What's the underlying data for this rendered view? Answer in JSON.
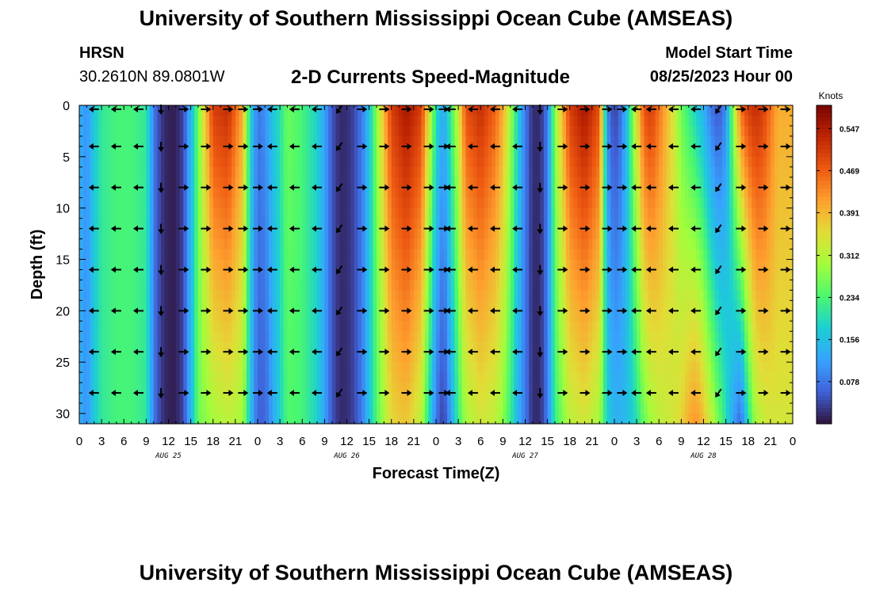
{
  "title": "University of Southern Mississippi Ocean Cube (AMSEAS)",
  "footer_title": "University of Southern Mississippi Ocean Cube (AMSEAS)",
  "station": {
    "name": "HRSN",
    "coords": "30.2610N  89.0801W"
  },
  "subtitle": "2-D Currents Speed-Magnitude",
  "model": {
    "label": "Model Start Time",
    "value": "08/25/2023 Hour 00"
  },
  "chart_data": {
    "type": "heatmap",
    "title": "2-D Currents Speed-Magnitude",
    "xlabel": "Forecast Time(Z)",
    "ylabel": "Depth (ft)",
    "x_range_hours": [
      0,
      96
    ],
    "ylim": [
      31,
      0
    ],
    "x_ticks": [
      "0",
      "3",
      "6",
      "9",
      "12",
      "15",
      "18",
      "21",
      "0",
      "3",
      "6",
      "9",
      "12",
      "15",
      "18",
      "21",
      "0",
      "3",
      "6",
      "9",
      "12",
      "15",
      "18",
      "21",
      "0",
      "3",
      "6",
      "9",
      "12",
      "15",
      "18",
      "21",
      "0"
    ],
    "day_labels": [
      {
        "text": "AUG 25",
        "hour": 12
      },
      {
        "text": "AUG 26",
        "hour": 36
      },
      {
        "text": "AUG 27",
        "hour": 60
      },
      {
        "text": "AUG 28",
        "hour": 84
      }
    ],
    "y_ticks": [
      0,
      5,
      10,
      15,
      20,
      25,
      30
    ],
    "colorbar": {
      "unit": "Knots",
      "range": [
        0,
        0.59
      ],
      "ticks": [
        "0.547",
        "0.469",
        "0.391",
        "0.312",
        "0.234",
        "0.156",
        "0.078"
      ],
      "tick_values": [
        0.547,
        0.469,
        0.391,
        0.312,
        0.234,
        0.156,
        0.078
      ]
    },
    "speed_profile": {
      "hours": [
        0,
        1,
        2,
        3,
        5,
        7,
        9,
        9.5,
        10,
        11,
        12,
        13,
        14,
        15,
        16,
        18,
        20,
        22,
        23,
        24,
        25,
        26,
        27,
        28,
        30,
        32,
        33,
        34,
        35,
        36,
        37,
        38,
        39,
        40,
        42,
        44,
        46,
        47,
        48,
        49,
        50,
        51,
        52,
        54,
        56,
        57,
        58,
        59,
        60,
        61,
        62,
        63,
        64,
        66,
        68,
        70,
        71,
        72,
        73,
        74,
        75,
        76,
        77,
        78,
        80,
        81,
        82,
        83,
        84,
        85,
        86,
        87,
        88,
        89,
        90,
        91,
        92,
        93,
        94,
        96
      ],
      "speed_knots_top": [
        0.14,
        0.1,
        0.17,
        0.21,
        0.23,
        0.23,
        0.21,
        0.15,
        0.08,
        0.03,
        0.01,
        0.01,
        0.04,
        0.14,
        0.26,
        0.5,
        0.52,
        0.4,
        0.18,
        0.08,
        0.1,
        0.16,
        0.2,
        0.26,
        0.23,
        0.18,
        0.12,
        0.05,
        0.02,
        0.02,
        0.04,
        0.08,
        0.16,
        0.28,
        0.5,
        0.55,
        0.5,
        0.35,
        0.2,
        0.12,
        0.22,
        0.33,
        0.48,
        0.52,
        0.46,
        0.4,
        0.3,
        0.18,
        0.08,
        0.02,
        0.02,
        0.08,
        0.28,
        0.5,
        0.55,
        0.48,
        0.1,
        0.03,
        0.08,
        0.2,
        0.35,
        0.48,
        0.5,
        0.45,
        0.34,
        0.26,
        0.22,
        0.18,
        0.14,
        0.08,
        0.05,
        0.1,
        0.28,
        0.45,
        0.5,
        0.52,
        0.5,
        0.45,
        0.4,
        0.4
      ],
      "speed_knots_bottom": [
        0.14,
        0.1,
        0.17,
        0.21,
        0.23,
        0.23,
        0.21,
        0.15,
        0.08,
        0.03,
        0.01,
        0.01,
        0.04,
        0.14,
        0.26,
        0.3,
        0.32,
        0.3,
        0.16,
        0.06,
        0.06,
        0.12,
        0.18,
        0.24,
        0.23,
        0.18,
        0.12,
        0.05,
        0.02,
        0.02,
        0.04,
        0.08,
        0.16,
        0.24,
        0.36,
        0.38,
        0.32,
        0.2,
        0.08,
        0.03,
        0.12,
        0.22,
        0.3,
        0.34,
        0.32,
        0.28,
        0.22,
        0.14,
        0.08,
        0.02,
        0.02,
        0.08,
        0.22,
        0.32,
        0.34,
        0.3,
        0.18,
        0.14,
        0.14,
        0.16,
        0.2,
        0.26,
        0.3,
        0.32,
        0.34,
        0.36,
        0.4,
        0.42,
        0.38,
        0.32,
        0.26,
        0.2,
        0.12,
        0.07,
        0.2,
        0.3,
        0.33,
        0.34,
        0.34,
        0.34
      ]
    },
    "vector_depths_ft": [
      0,
      4,
      8,
      12,
      16,
      20,
      24,
      28
    ],
    "vectors": [
      {
        "hour": 2,
        "dir": "W",
        "rows": "all"
      },
      {
        "hour": 5,
        "dir": "W",
        "rows": "all"
      },
      {
        "hour": 8,
        "dir": "W",
        "rows": "all"
      },
      {
        "hour": 11,
        "dir": "S",
        "rows": "all"
      },
      {
        "hour": 14,
        "dir": "E",
        "rows": "all"
      },
      {
        "hour": 17,
        "dir": "E",
        "rows": "all"
      },
      {
        "hour": 20,
        "dir": "E",
        "rows": "all"
      },
      {
        "hour": 22,
        "dir": "E",
        "rows": "all"
      },
      {
        "hour": 24,
        "dir": "E",
        "rows": "all"
      },
      {
        "hour": 26,
        "dir": "W",
        "rows": "all"
      },
      {
        "hour": 29,
        "dir": "W",
        "rows": "all"
      },
      {
        "hour": 32,
        "dir": "W",
        "rows": "all"
      },
      {
        "hour": 35,
        "dir": "SW",
        "rows": "all"
      },
      {
        "hour": 38,
        "dir": "E",
        "rows": "all"
      },
      {
        "hour": 41,
        "dir": "E",
        "rows": "all"
      },
      {
        "hour": 44,
        "dir": "E",
        "rows": "all"
      },
      {
        "hour": 47,
        "dir": "E",
        "rows": "all"
      },
      {
        "hour": 49,
        "dir": "E",
        "rows": "all"
      },
      {
        "hour": 50,
        "dir": "W",
        "rows": "all"
      },
      {
        "hour": 53,
        "dir": "W",
        "rows": "all"
      },
      {
        "hour": 56,
        "dir": "W",
        "rows": "all"
      },
      {
        "hour": 59,
        "dir": "W",
        "rows": "all"
      },
      {
        "hour": 62,
        "dir": "S",
        "rows": "all"
      },
      {
        "hour": 65,
        "dir": "E",
        "rows": "all"
      },
      {
        "hour": 68,
        "dir": "E",
        "rows": "all"
      },
      {
        "hour": 71,
        "dir": "E",
        "rows": "all"
      },
      {
        "hour": 73,
        "dir": "E",
        "rows": "all"
      },
      {
        "hour": 75,
        "dir": "W",
        "rows": "all"
      },
      {
        "hour": 77,
        "dir": "W",
        "rows": "all"
      },
      {
        "hour": 80,
        "dir": "W",
        "rows": "all"
      },
      {
        "hour": 83,
        "dir": "W",
        "rows": "all"
      },
      {
        "hour": 86,
        "dir": "SW",
        "rows": "all"
      },
      {
        "hour": 89,
        "dir": "E",
        "rows": "all"
      },
      {
        "hour": 92,
        "dir": "E",
        "rows": "all"
      },
      {
        "hour": 95,
        "dir": "E",
        "rows": "all"
      }
    ]
  }
}
